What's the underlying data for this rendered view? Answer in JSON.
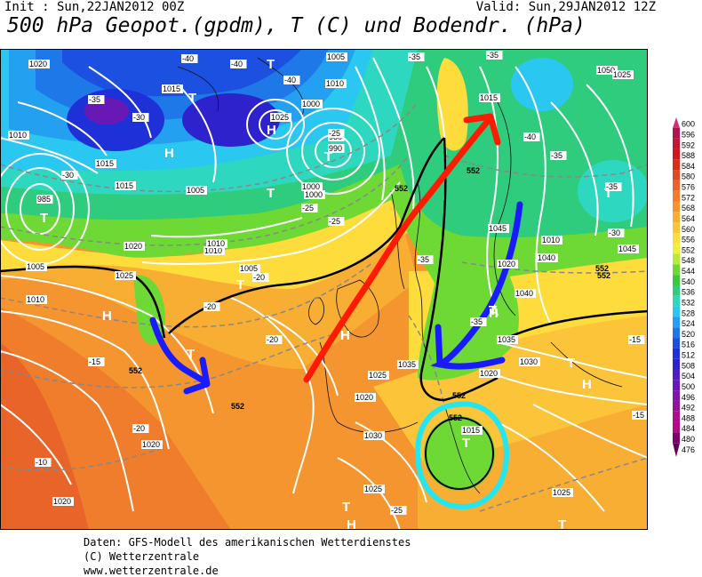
{
  "header": {
    "init": "Init : Sun,22JAN2012 00Z",
    "valid": "Valid: Sun,29JAN2012 12Z",
    "title": "500 hPa Geopot.(gpdm), T (C) und Bodendr. (hPa)"
  },
  "footer": {
    "line1": "Daten: GFS-Modell des amerikanischen Wetterdienstes",
    "line2": "(C) Wetterzentrale",
    "line3": "www.wetterzentrale.de"
  },
  "scale": {
    "labels": [
      "600",
      "596",
      "592",
      "588",
      "584",
      "580",
      "576",
      "572",
      "568",
      "564",
      "560",
      "556",
      "552",
      "548",
      "544",
      "540",
      "536",
      "532",
      "528",
      "524",
      "520",
      "516",
      "512",
      "508",
      "504",
      "500",
      "496",
      "492",
      "488",
      "484",
      "480",
      "476"
    ],
    "colors": [
      "#c8337a",
      "#a8174d",
      "#c01830",
      "#d01818",
      "#d83018",
      "#e04a20",
      "#e86428",
      "#ef7d2c",
      "#f49530",
      "#f8ad33",
      "#fcc438",
      "#fedc3c",
      "#f2ee3c",
      "#b6ea36",
      "#6ed934",
      "#3cc83c",
      "#2ecc7c",
      "#2ed8c0",
      "#2ac8f0",
      "#24a0f0",
      "#1e78e8",
      "#1c50e0",
      "#1e30d8",
      "#2e22cc",
      "#4a1ec0",
      "#6818b4",
      "#8214a8",
      "#98109c",
      "#a80e90",
      "#b40c88",
      "#800070",
      "#600058"
    ]
  },
  "map": {
    "pressure_labels": [
      "1020",
      "1005",
      "1000",
      "1015",
      "1010",
      "1010",
      "1025",
      "985",
      "980",
      "990",
      "1000",
      "1015",
      "1020",
      "1005",
      "1010",
      "1010",
      "1005",
      "1000",
      "1005",
      "1025",
      "1010",
      "1020",
      "1015",
      "1045",
      "1050",
      "1040",
      "1045",
      "1040",
      "1035",
      "1030",
      "1025",
      "1020",
      "1035",
      "1030",
      "1025",
      "1020",
      "1015",
      "1025",
      "1020",
      "1010",
      "1020",
      "1015",
      "1025"
    ],
    "temp_labels": [
      "-40",
      "-40",
      "-35",
      "-35",
      "-40",
      "-35",
      "-25",
      "-25",
      "-30",
      "-30",
      "-20",
      "-20",
      "-15",
      "-20",
      "-35",
      "-35",
      "-40",
      "-35",
      "-30",
      "-25",
      "-15",
      "-15",
      "-10",
      "-20",
      "-25",
      "-35"
    ],
    "geo_labels": [
      "552",
      "552",
      "552",
      "552",
      "552",
      "552",
      "552",
      "552"
    ],
    "h_label": "H",
    "t_label": "T"
  }
}
